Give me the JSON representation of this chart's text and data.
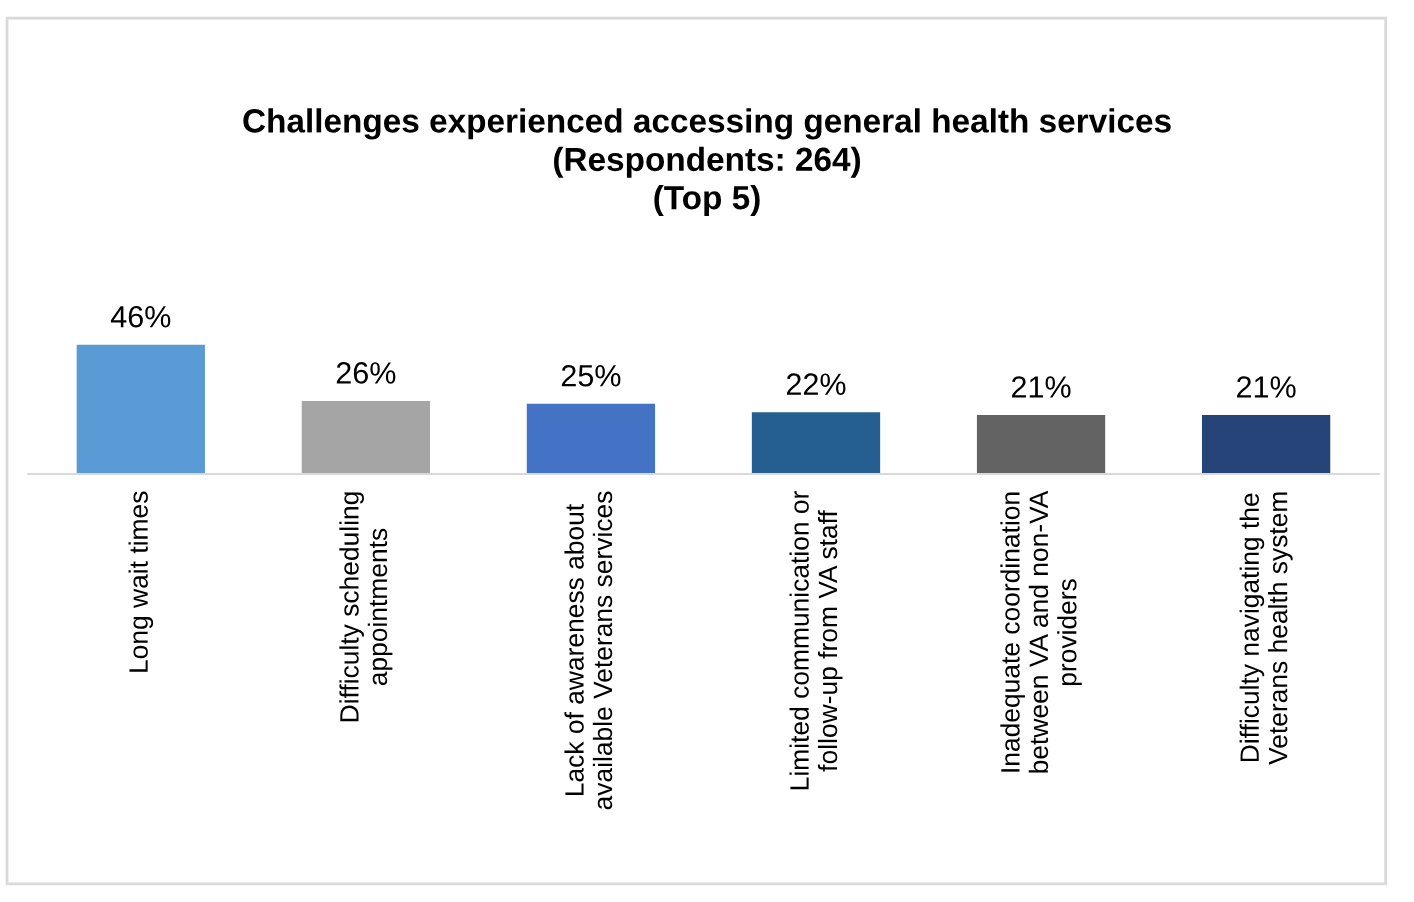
{
  "chart_data": {
    "type": "bar",
    "title": "Challenges experienced accessing general health services\n(Respondents: 264)\n(Top 5)",
    "categories": [
      "Long wait times",
      "Difficulty scheduling\nappointments",
      "Lack of awareness about\navailable Veterans services",
      "Limited communication or\nfollow-up from VA staff",
      "Inadequate coordination\nbetween VA and non-VA\nproviders",
      "Difficulty navigating the\nVeterans health system"
    ],
    "values": [
      46,
      26,
      25,
      22,
      21,
      21
    ],
    "value_labels": [
      "46%",
      "26%",
      "25%",
      "22%",
      "21%",
      "21%"
    ],
    "colors": [
      "#5b9bd5",
      "#a5a5a5",
      "#4472c4",
      "#255e91",
      "#636363",
      "#264478"
    ],
    "grid": false,
    "legend": false
  }
}
